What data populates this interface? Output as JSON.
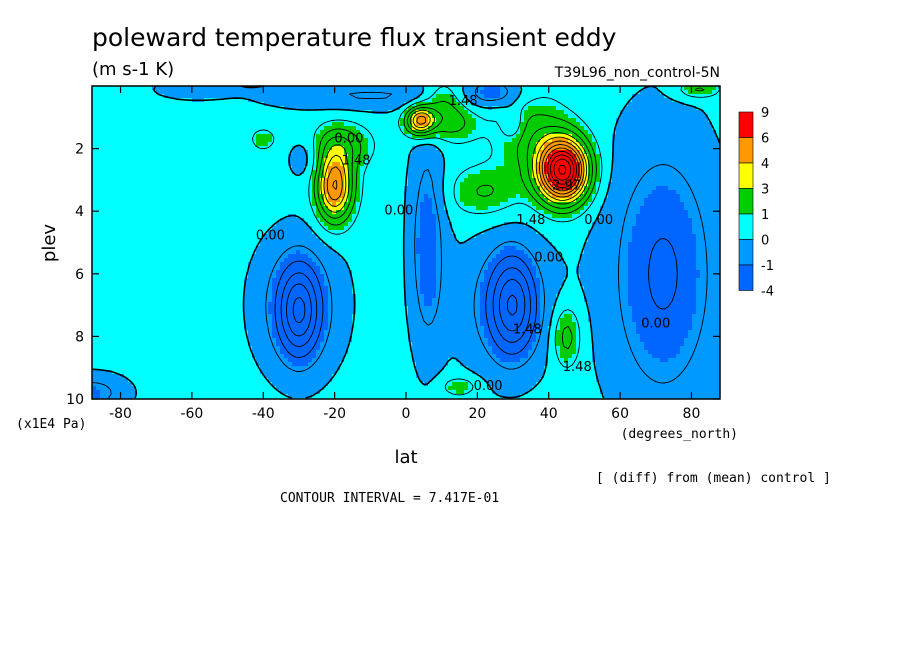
{
  "chart_data": {
    "type": "heatmap",
    "title": "poleward temperature flux transient eddy",
    "units": "(m s-1 K)",
    "dataset": "T39L96_non_control-5N",
    "xlabel": "lat",
    "xunits": "(degrees_north)",
    "ylabel": "plev",
    "yunits": "(x1E4 Pa)",
    "xlim": [
      -88,
      88
    ],
    "ylim": [
      0,
      10
    ],
    "x_ticks": [
      -80,
      -60,
      -40,
      -20,
      0,
      20,
      40,
      60,
      80
    ],
    "y_ticks": [
      2,
      4,
      6,
      8,
      10
    ],
    "x_tick_labels": [
      "-80",
      "-60",
      "-40",
      "-20",
      "0",
      "20",
      "40",
      "60",
      "80"
    ],
    "y_tick_labels": [
      "2",
      "4",
      "6",
      "8",
      "10"
    ],
    "note": "[ (diff) from (mean) control ]",
    "contour_interval_text": "CONTOUR INTERVAL = 7.417E-01",
    "contour_interval": 0.7417,
    "contour_labels": [
      {
        "text": "1.48",
        "lat": 16,
        "plev": 0.5
      },
      {
        "text": "0.00",
        "lat": -16,
        "plev": 1.7
      },
      {
        "text": "1.48",
        "lat": -14,
        "plev": 2.4
      },
      {
        "text": "0.00",
        "lat": -38,
        "plev": 4.8
      },
      {
        "text": "0.00",
        "lat": -2,
        "plev": 4.0
      },
      {
        "text": "2.97",
        "lat": 45,
        "plev": 3.2
      },
      {
        "text": "1.48",
        "lat": 35,
        "plev": 4.3
      },
      {
        "text": "0.00",
        "lat": 54,
        "plev": 4.3
      },
      {
        "text": "0.00",
        "lat": 40,
        "plev": 5.5
      },
      {
        "text": "1.48",
        "lat": 34,
        "plev": 7.8
      },
      {
        "text": "1.48",
        "lat": 48,
        "plev": 9.0
      },
      {
        "text": "0.00",
        "lat": 70,
        "plev": 7.6
      },
      {
        "text": "0.00",
        "lat": 23,
        "plev": 9.6
      }
    ],
    "color_bins": [
      {
        "label": "9",
        "color": "#ff0000"
      },
      {
        "label": "6",
        "color": "#ff9900"
      },
      {
        "label": "4",
        "color": "#ffff00"
      },
      {
        "label": "3",
        "color": "#00cc00"
      },
      {
        "label": "1",
        "color": "#00ffff"
      },
      {
        "label": "0",
        "color": "#0099ff"
      },
      {
        "label": "-1",
        "color": "#0066ff"
      },
      {
        "label": "-4",
        "color": ""
      }
    ],
    "features": [
      {
        "lat": 44,
        "plev": 2.7,
        "amp": 8.6,
        "sx": 7,
        "sy": 1.0
      },
      {
        "lat": 35,
        "plev": 1.5,
        "amp": 1.4,
        "sx": 10,
        "sy": 1.3
      },
      {
        "lat": 4,
        "plev": 1.1,
        "amp": 4.4,
        "sx": 4,
        "sy": 0.45
      },
      {
        "lat": 12,
        "plev": 1.2,
        "amp": 1.5,
        "sx": 8,
        "sy": 0.6
      },
      {
        "lat": 22,
        "plev": 3.4,
        "amp": 1.3,
        "sx": 10,
        "sy": 0.8
      },
      {
        "lat": -20,
        "plev": 3.2,
        "amp": 5.0,
        "sx": 5,
        "sy": 1.1
      },
      {
        "lat": -18,
        "plev": 1.9,
        "amp": 1.6,
        "sx": 8,
        "sy": 0.7
      },
      {
        "lat": -28,
        "plev": 2.3,
        "amp": -0.8,
        "sx": 5,
        "sy": 0.7
      },
      {
        "lat": -40,
        "plev": 1.7,
        "amp": 1.2,
        "sx": 3,
        "sy": 0.3
      },
      {
        "lat": 45,
        "plev": 8.0,
        "amp": 1.7,
        "sx": 4,
        "sy": 1.0
      },
      {
        "lat": 15,
        "plev": 9.6,
        "amp": 1.2,
        "sx": 5,
        "sy": 0.3
      },
      {
        "lat": 25,
        "plev": 0.2,
        "amp": -1.4,
        "sx": 8,
        "sy": 0.5
      },
      {
        "lat": -10,
        "plev": 0.3,
        "amp": -1.1,
        "sx": 30,
        "sy": 0.5
      },
      {
        "lat": 10,
        "plev": 0.4,
        "amp": 1.6,
        "sx": 6,
        "sy": 0.6
      },
      {
        "lat": -60,
        "plev": 0.1,
        "amp": -0.9,
        "sx": 10,
        "sy": 0.3
      },
      {
        "lat": 82,
        "plev": 0.1,
        "amp": 1.5,
        "sx": 6,
        "sy": 0.3
      },
      {
        "lat": -30,
        "plev": 7.2,
        "amp": -2.7,
        "sx": 5.5,
        "sy": 1.4
      },
      {
        "lat": -30,
        "plev": 7.0,
        "amp": -1.6,
        "sx": 12,
        "sy": 2.2
      },
      {
        "lat": 30,
        "plev": 7.0,
        "amp": -2.7,
        "sx": 6,
        "sy": 1.5
      },
      {
        "lat": 28,
        "plev": 7.0,
        "amp": -1.5,
        "sx": 13,
        "sy": 2.2
      },
      {
        "lat": 6,
        "plev": 5.0,
        "amp": -1.7,
        "sx": 5,
        "sy": 3.5
      },
      {
        "lat": 72,
        "plev": 6.0,
        "amp": -1.9,
        "sx": 16,
        "sy": 4.5
      },
      {
        "lat": -88,
        "plev": 9.8,
        "amp": -1.4,
        "sx": 10,
        "sy": 0.6
      },
      {
        "lat": 30,
        "plev": 1.2,
        "amp": -1.2,
        "sx": 3,
        "sy": 0.5
      }
    ]
  }
}
